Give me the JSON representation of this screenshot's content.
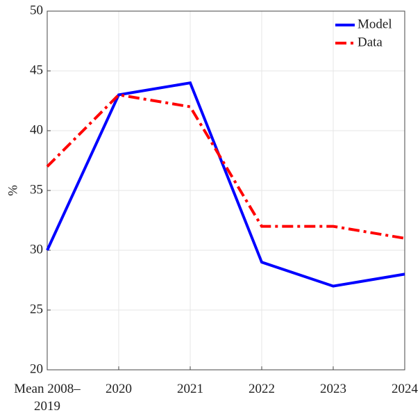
{
  "chart_data": {
    "type": "line",
    "y_label": "%",
    "categories": [
      "Mean 2008–2019",
      "2020",
      "2021",
      "2022",
      "2023",
      "2024"
    ],
    "series": [
      {
        "name": "Model",
        "color": "#0000ff",
        "linestyle": "solid",
        "values": [
          30,
          43,
          44,
          29,
          27,
          28
        ]
      },
      {
        "name": "Data",
        "color": "#ff0000",
        "linestyle": "dashdot",
        "values": [
          37,
          43,
          42,
          32,
          32,
          31
        ]
      }
    ],
    "ylim": [
      20,
      50
    ],
    "yticks": [
      20,
      25,
      30,
      35,
      40,
      45,
      50
    ],
    "grid": true,
    "legend": "top-right"
  }
}
